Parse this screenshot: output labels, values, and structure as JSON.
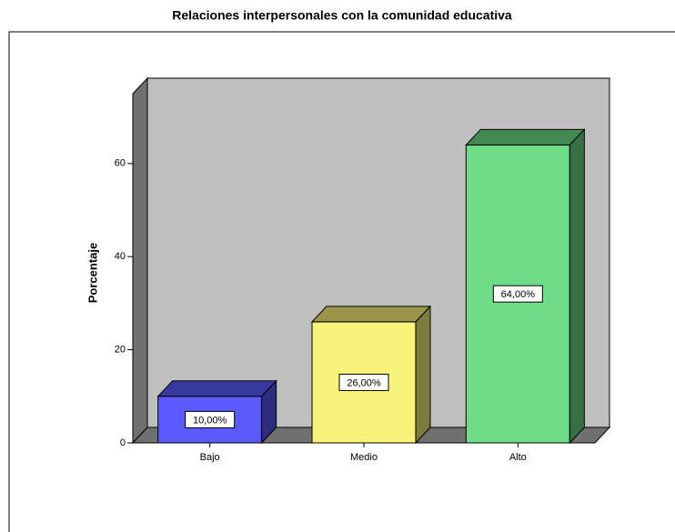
{
  "chart_data": {
    "type": "bar3d",
    "title": "Relaciones interpersonales con la comunidad educativa",
    "y_label": "Porcentaje",
    "categories": [
      "Bajo",
      "Medio",
      "Alto"
    ],
    "values": [
      10,
      26,
      64
    ],
    "value_labels": [
      "10,00%",
      "26,00%",
      "64,00%"
    ],
    "colors": [
      "#5a5aff",
      "#f8f47a",
      "#70dc88"
    ],
    "ylim": [
      0,
      75
    ],
    "yticks": [
      0,
      20,
      40,
      60
    ]
  }
}
